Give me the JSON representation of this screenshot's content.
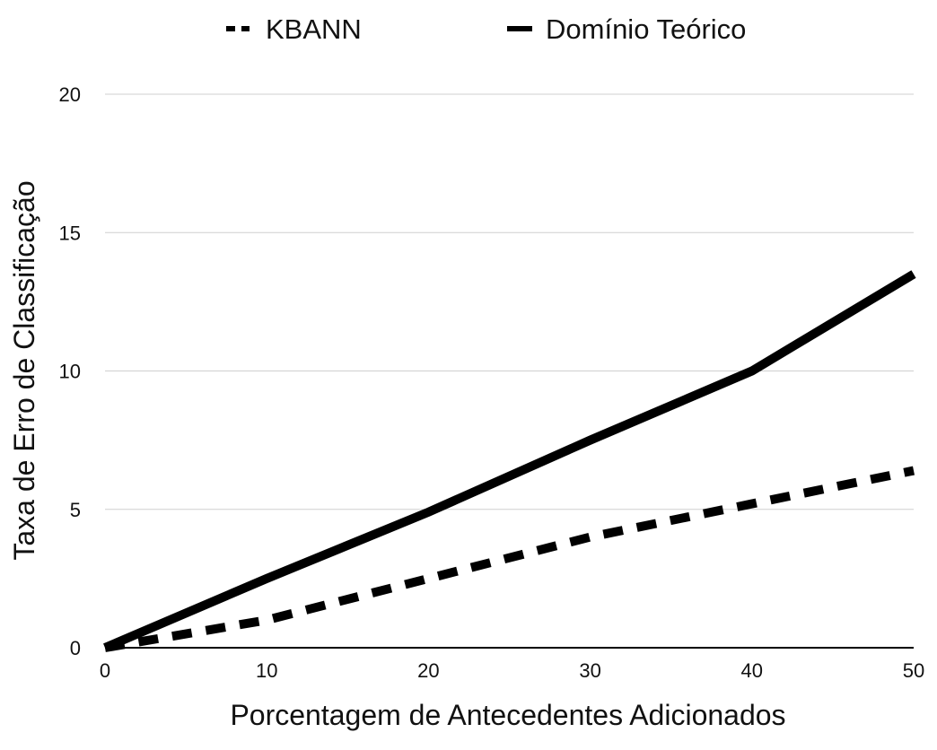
{
  "chart_data": {
    "type": "line",
    "title": "",
    "xlabel": "Porcentagem de Antecedentes Adicionados",
    "ylabel": "Taxa de Erro de Classificação",
    "xlim": [
      0,
      50
    ],
    "ylim": [
      0,
      20
    ],
    "x_ticks": [
      0,
      10,
      20,
      30,
      40,
      50
    ],
    "y_ticks": [
      0,
      5,
      10,
      15,
      20
    ],
    "grid": "horizontal",
    "legend_position": "top",
    "series": [
      {
        "name": "KBANN",
        "style": "dashed",
        "color": "#000000",
        "x": [
          0,
          10,
          20,
          30,
          40,
          50
        ],
        "y": [
          0,
          1,
          2.5,
          4,
          5.2,
          6.4
        ]
      },
      {
        "name": "Domínio Teórico",
        "style": "solid",
        "color": "#000000",
        "x": [
          0,
          10,
          20,
          30,
          40,
          50
        ],
        "y": [
          0,
          2.5,
          4.9,
          7.5,
          10,
          13.5
        ]
      }
    ]
  }
}
